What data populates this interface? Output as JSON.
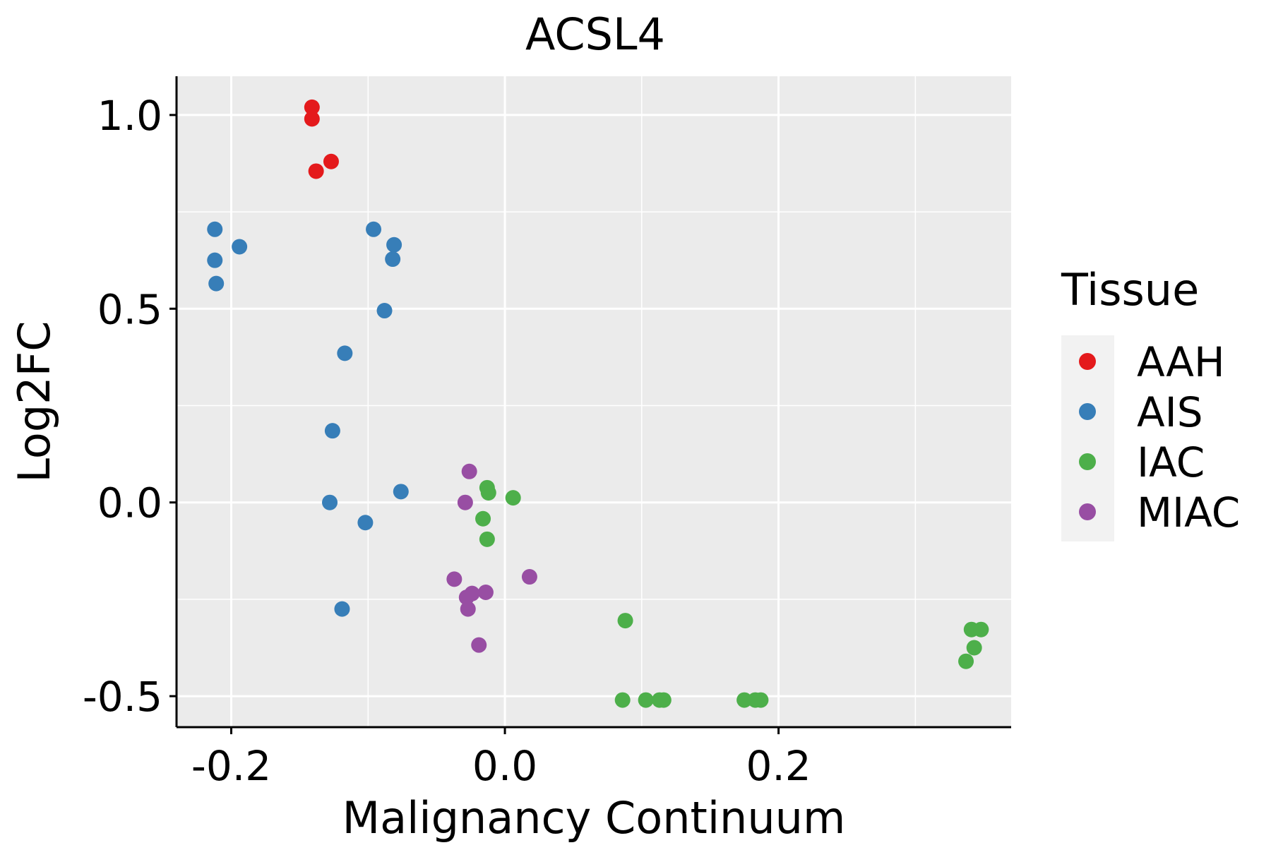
{
  "chart_data": {
    "type": "scatter",
    "title": "ACSL4",
    "xlabel": "Malignancy Continuum",
    "ylabel": "Log2FC",
    "xlim": [
      -0.24,
      0.37
    ],
    "ylim": [
      -0.58,
      1.1
    ],
    "x_ticks": [
      -0.2,
      0.0,
      0.2
    ],
    "x_tick_labels": [
      "-0.2",
      "0.0",
      "0.2"
    ],
    "y_ticks": [
      -0.5,
      0.0,
      0.5,
      1.0
    ],
    "y_tick_labels": [
      "-0.5",
      "0.0",
      "0.5",
      "1.0"
    ],
    "grid": true,
    "legend": {
      "title": "Tissue",
      "position": "right"
    },
    "series": [
      {
        "name": "AAH",
        "color": "#E41A1C",
        "points": [
          {
            "x": -0.141,
            "y": 1.02
          },
          {
            "x": -0.141,
            "y": 0.99
          },
          {
            "x": -0.138,
            "y": 0.855
          },
          {
            "x": -0.127,
            "y": 0.88
          }
        ]
      },
      {
        "name": "AIS",
        "color": "#377EB8",
        "points": [
          {
            "x": -0.212,
            "y": 0.705
          },
          {
            "x": -0.212,
            "y": 0.625
          },
          {
            "x": -0.211,
            "y": 0.565
          },
          {
            "x": -0.194,
            "y": 0.66
          },
          {
            "x": -0.096,
            "y": 0.705
          },
          {
            "x": -0.081,
            "y": 0.665
          },
          {
            "x": -0.082,
            "y": 0.628
          },
          {
            "x": -0.088,
            "y": 0.495
          },
          {
            "x": -0.117,
            "y": 0.385
          },
          {
            "x": -0.126,
            "y": 0.185
          },
          {
            "x": -0.128,
            "y": 0.0
          },
          {
            "x": -0.076,
            "y": 0.028
          },
          {
            "x": -0.102,
            "y": -0.052
          },
          {
            "x": -0.119,
            "y": -0.275
          }
        ]
      },
      {
        "name": "IAC",
        "color": "#4DAF4A",
        "points": [
          {
            "x": -0.013,
            "y": 0.038
          },
          {
            "x": -0.012,
            "y": 0.025
          },
          {
            "x": 0.006,
            "y": 0.012
          },
          {
            "x": -0.016,
            "y": -0.042
          },
          {
            "x": -0.013,
            "y": -0.095
          },
          {
            "x": 0.088,
            "y": -0.305
          },
          {
            "x": 0.086,
            "y": -0.51
          },
          {
            "x": 0.103,
            "y": -0.51
          },
          {
            "x": 0.113,
            "y": -0.51
          },
          {
            "x": 0.116,
            "y": -0.51
          },
          {
            "x": 0.175,
            "y": -0.51
          },
          {
            "x": 0.183,
            "y": -0.51
          },
          {
            "x": 0.187,
            "y": -0.51
          },
          {
            "x": 0.337,
            "y": -0.41
          },
          {
            "x": 0.343,
            "y": -0.375
          },
          {
            "x": 0.341,
            "y": -0.328
          },
          {
            "x": 0.348,
            "y": -0.328
          }
        ]
      },
      {
        "name": "MIAC",
        "color": "#984EA3",
        "points": [
          {
            "x": -0.026,
            "y": 0.08
          },
          {
            "x": -0.029,
            "y": 0.0
          },
          {
            "x": -0.037,
            "y": -0.198
          },
          {
            "x": -0.028,
            "y": -0.245
          },
          {
            "x": -0.024,
            "y": -0.235
          },
          {
            "x": -0.014,
            "y": -0.232
          },
          {
            "x": -0.027,
            "y": -0.275
          },
          {
            "x": 0.018,
            "y": -0.192
          },
          {
            "x": -0.019,
            "y": -0.368
          }
        ]
      }
    ]
  }
}
